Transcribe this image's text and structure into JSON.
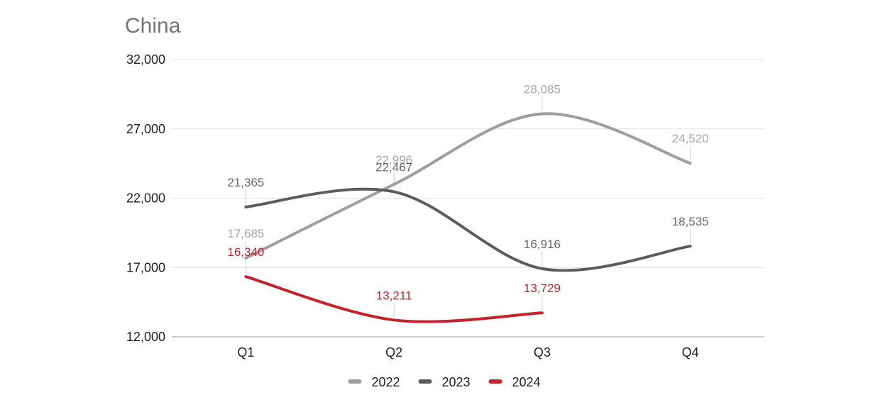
{
  "title": "China",
  "chart": {
    "colors": {
      "background": "#ffffff",
      "grid": "#e2e2e2",
      "axis_line": "#cdcdcd",
      "axis_text": "#1f1f1f",
      "title_text": "#737373",
      "connector": "#cfcfcf",
      "legend_text": "#1f1f1f"
    }
  },
  "chart_data": {
    "type": "line",
    "smooth": true,
    "title": "China",
    "xlabel": "",
    "ylabel": "",
    "grid": true,
    "legend_position": "bottom",
    "categories": [
      "Q1",
      "Q2",
      "Q3",
      "Q4"
    ],
    "series": [
      {
        "name": "2022",
        "color": "#9e9e9e",
        "label_color": "#a6a6a6",
        "values": [
          17685,
          22996,
          28085,
          24520
        ],
        "value_labels": [
          "17,685",
          "22,996",
          "28,085",
          "24,520"
        ]
      },
      {
        "name": "2023",
        "color": "#5c5c5c",
        "label_color": "#666666",
        "values": [
          21365,
          22467,
          16916,
          18535
        ],
        "value_labels": [
          "21,365",
          "22,467",
          "16,916",
          "18,535"
        ]
      },
      {
        "name": "2024",
        "color": "#c5232b",
        "label_color": "#c5232b",
        "values": [
          16340,
          13211,
          13729,
          null
        ],
        "value_labels": [
          "16,340",
          "13,211",
          "13,729",
          null
        ]
      }
    ],
    "y_ticks": [
      {
        "value": 32000,
        "label": "32,000"
      },
      {
        "value": 27000,
        "label": "27,000"
      },
      {
        "value": 22000,
        "label": "22,000"
      },
      {
        "value": 17000,
        "label": "17,000"
      },
      {
        "value": 12000,
        "label": "12,000"
      }
    ],
    "ylim": [
      12000,
      32000
    ]
  }
}
